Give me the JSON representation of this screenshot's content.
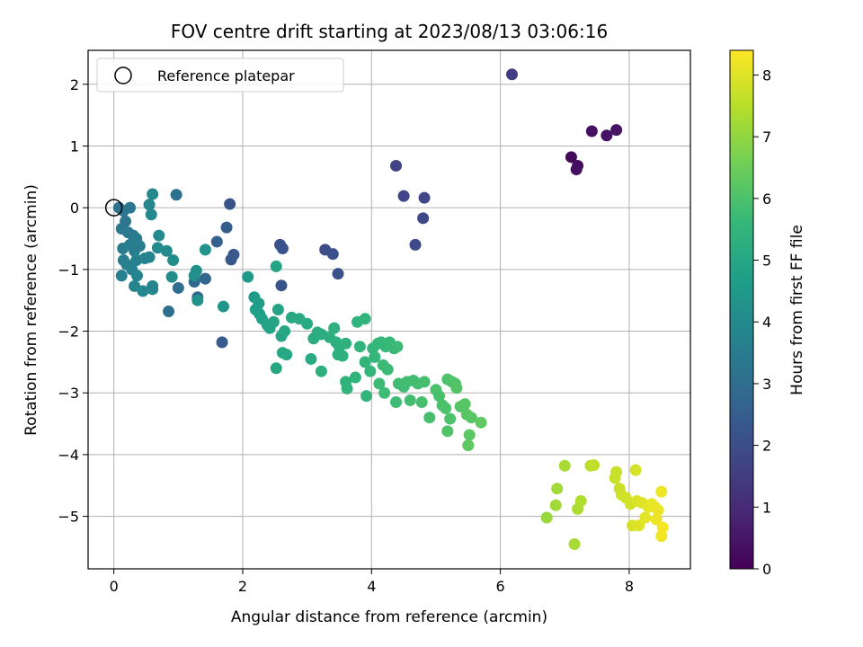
{
  "chart_data": {
    "type": "scatter",
    "title": "FOV centre drift starting at 2023/08/13 03:06:16",
    "xlabel": "Angular distance from reference (arcmin)",
    "ylabel": "Rotation from reference (arcmin)",
    "xlim": [
      -0.4,
      8.95
    ],
    "ylim": [
      -5.85,
      2.55
    ],
    "xticks": [
      0,
      2,
      4,
      6,
      8
    ],
    "xtick_labels": [
      "0",
      "2",
      "4",
      "6",
      "8"
    ],
    "yticks": [
      2,
      1,
      0,
      -1,
      -2,
      -3,
      -4,
      -5
    ],
    "ytick_labels": [
      "2",
      "1",
      "0",
      "−1",
      "−2",
      "−3",
      "−4",
      "−5"
    ],
    "grid": true,
    "legend": {
      "placement": "top-left",
      "entries": [
        "Reference platepar"
      ]
    },
    "reference_point": {
      "x": 0,
      "y": 0
    },
    "colorbar": {
      "label": "Hours from first FF file",
      "colormap": "viridis",
      "range": [
        0,
        8.4
      ],
      "ticks": [
        0,
        1,
        2,
        3,
        4,
        5,
        6,
        7,
        8
      ],
      "tick_labels": [
        "0",
        "1",
        "2",
        "3",
        "4",
        "5",
        "6",
        "7",
        "8"
      ]
    },
    "colormap_stops": [
      "#440154",
      "#482878",
      "#3e4989",
      "#31688e",
      "#26828e",
      "#1f9e89",
      "#35b779",
      "#6ece58",
      "#b5de2b",
      "#fde725"
    ],
    "points": [
      [
        7.1,
        0.82,
        0.2
      ],
      [
        7.2,
        0.68,
        0.25
      ],
      [
        7.18,
        0.62,
        0.3
      ],
      [
        7.42,
        1.24,
        0.35
      ],
      [
        7.65,
        1.17,
        0.4
      ],
      [
        7.8,
        1.26,
        0.45
      ],
      [
        6.18,
        2.16,
        1.5
      ],
      [
        4.38,
        0.68,
        1.7
      ],
      [
        4.5,
        0.19,
        1.75
      ],
      [
        4.82,
        0.16,
        1.8
      ],
      [
        4.8,
        -0.17,
        1.85
      ],
      [
        4.68,
        -0.6,
        1.9
      ],
      [
        3.28,
        -0.68,
        2.0
      ],
      [
        3.4,
        -0.75,
        2.05
      ],
      [
        3.48,
        -1.07,
        2.1
      ],
      [
        2.58,
        -0.6,
        2.1
      ],
      [
        2.62,
        -0.66,
        2.15
      ],
      [
        2.6,
        -1.26,
        2.2
      ],
      [
        1.8,
        0.06,
        2.2
      ],
      [
        1.82,
        -0.84,
        2.3
      ],
      [
        1.86,
        -0.76,
        2.35
      ],
      [
        1.68,
        -2.18,
        2.4
      ],
      [
        1.75,
        -0.32,
        2.5
      ],
      [
        1.6,
        -0.55,
        2.6
      ],
      [
        1.42,
        -1.15,
        2.75
      ],
      [
        1.25,
        -1.2,
        2.8
      ],
      [
        1.3,
        -1.45,
        2.9
      ],
      [
        1.0,
        -1.3,
        3.0
      ],
      [
        0.85,
        -1.68,
        3.05
      ],
      [
        0.97,
        0.21,
        3.1
      ],
      [
        0.08,
        0.0,
        3.2
      ],
      [
        0.15,
        -0.05,
        3.25
      ],
      [
        0.25,
        0.0,
        3.25
      ],
      [
        0.18,
        -0.22,
        3.3
      ],
      [
        0.12,
        -0.34,
        3.35
      ],
      [
        0.22,
        -0.4,
        3.4
      ],
      [
        0.3,
        -0.45,
        3.45
      ],
      [
        0.35,
        -0.5,
        3.5
      ],
      [
        0.14,
        -0.66,
        3.5
      ],
      [
        0.25,
        -0.6,
        3.55
      ],
      [
        0.32,
        -0.7,
        3.6
      ],
      [
        0.4,
        -0.62,
        3.6
      ],
      [
        0.15,
        -0.85,
        3.6
      ],
      [
        0.2,
        -0.92,
        3.65
      ],
      [
        0.12,
        -1.1,
        3.65
      ],
      [
        0.28,
        -1.0,
        3.7
      ],
      [
        0.35,
        -0.85,
        3.7
      ],
      [
        0.48,
        -0.82,
        3.75
      ],
      [
        0.55,
        -0.8,
        3.75
      ],
      [
        0.36,
        -1.1,
        3.8
      ],
      [
        0.32,
        -1.27,
        3.8
      ],
      [
        0.45,
        -1.35,
        3.85
      ],
      [
        0.6,
        -1.32,
        3.85
      ],
      [
        0.6,
        -1.27,
        3.9
      ],
      [
        0.55,
        0.05,
        3.9
      ],
      [
        0.6,
        0.22,
        3.95
      ],
      [
        0.58,
        -0.11,
        3.95
      ],
      [
        0.7,
        -0.45,
        4.0
      ],
      [
        0.68,
        -0.65,
        4.0
      ],
      [
        0.82,
        -0.7,
        4.05
      ],
      [
        0.92,
        -0.85,
        4.1
      ],
      [
        0.9,
        -1.12,
        4.1
      ],
      [
        1.25,
        -1.1,
        4.15
      ],
      [
        1.28,
        -1.02,
        4.2
      ],
      [
        1.3,
        -1.5,
        4.25
      ],
      [
        1.42,
        -0.68,
        4.3
      ],
      [
        1.7,
        -1.6,
        4.4
      ],
      [
        2.08,
        -1.12,
        4.5
      ],
      [
        2.18,
        -1.45,
        4.55
      ],
      [
        2.25,
        -1.55,
        4.6
      ],
      [
        2.2,
        -1.65,
        4.65
      ],
      [
        2.26,
        -1.72,
        4.7
      ],
      [
        2.3,
        -1.8,
        4.75
      ],
      [
        2.38,
        -1.9,
        4.8
      ],
      [
        2.42,
        -1.95,
        4.85
      ],
      [
        2.48,
        -1.85,
        4.9
      ],
      [
        2.55,
        -1.65,
        4.9
      ],
      [
        2.52,
        -0.95,
        4.9
      ],
      [
        2.6,
        -2.08,
        4.95
      ],
      [
        2.65,
        -2.0,
        5.0
      ],
      [
        2.62,
        -2.35,
        5.0
      ],
      [
        2.68,
        -2.38,
        5.0
      ],
      [
        2.52,
        -2.6,
        5.05
      ],
      [
        2.76,
        -1.78,
        5.05
      ],
      [
        2.88,
        -1.8,
        5.1
      ],
      [
        3.0,
        -1.88,
        5.1
      ],
      [
        3.06,
        -2.45,
        5.15
      ],
      [
        3.1,
        -2.12,
        5.15
      ],
      [
        3.16,
        -2.02,
        5.2
      ],
      [
        3.22,
        -2.05,
        5.2
      ],
      [
        3.22,
        -2.65,
        5.25
      ],
      [
        3.35,
        -2.1,
        5.25
      ],
      [
        3.42,
        -1.95,
        5.3
      ],
      [
        3.45,
        -2.18,
        5.3
      ],
      [
        3.5,
        -2.25,
        5.3
      ],
      [
        3.55,
        -2.4,
        5.35
      ],
      [
        3.48,
        -2.38,
        5.35
      ],
      [
        3.6,
        -2.2,
        5.35
      ],
      [
        3.6,
        -2.82,
        5.4
      ],
      [
        3.62,
        -2.93,
        5.4
      ],
      [
        3.75,
        -2.75,
        5.45
      ],
      [
        3.78,
        -1.85,
        5.45
      ],
      [
        3.9,
        -1.8,
        5.5
      ],
      [
        3.82,
        -2.25,
        5.5
      ],
      [
        3.9,
        -2.5,
        5.5
      ],
      [
        3.92,
        -3.05,
        5.5
      ],
      [
        3.98,
        -2.65,
        5.55
      ],
      [
        4.02,
        -2.28,
        5.55
      ],
      [
        4.05,
        -2.42,
        5.55
      ],
      [
        4.1,
        -2.2,
        5.6
      ],
      [
        4.15,
        -2.18,
        5.6
      ],
      [
        4.22,
        -2.25,
        5.6
      ],
      [
        4.28,
        -2.18,
        5.65
      ],
      [
        4.35,
        -2.28,
        5.65
      ],
      [
        4.4,
        -2.25,
        5.7
      ],
      [
        4.18,
        -2.55,
        5.7
      ],
      [
        4.25,
        -2.62,
        5.7
      ],
      [
        4.12,
        -2.85,
        5.7
      ],
      [
        4.2,
        -3.0,
        5.75
      ],
      [
        4.38,
        -3.15,
        5.75
      ],
      [
        4.42,
        -2.85,
        5.8
      ],
      [
        4.5,
        -2.9,
        5.8
      ],
      [
        4.55,
        -2.82,
        5.8
      ],
      [
        4.6,
        -3.12,
        5.85
      ],
      [
        4.65,
        -2.8,
        5.85
      ],
      [
        4.72,
        -2.85,
        5.85
      ],
      [
        4.78,
        -3.15,
        5.9
      ],
      [
        4.82,
        -2.82,
        5.9
      ],
      [
        4.9,
        -3.4,
        5.9
      ],
      [
        5.0,
        -2.95,
        5.95
      ],
      [
        5.05,
        -3.05,
        5.95
      ],
      [
        5.1,
        -3.2,
        5.95
      ],
      [
        5.15,
        -3.25,
        6.0
      ],
      [
        5.18,
        -2.78,
        6.0
      ],
      [
        5.22,
        -3.42,
        6.0
      ],
      [
        5.18,
        -3.62,
        6.05
      ],
      [
        5.25,
        -2.82,
        6.05
      ],
      [
        5.3,
        -2.85,
        6.05
      ],
      [
        5.32,
        -2.92,
        6.1
      ],
      [
        5.38,
        -3.22,
        6.1
      ],
      [
        5.45,
        -3.18,
        6.15
      ],
      [
        5.48,
        -3.35,
        6.15
      ],
      [
        5.55,
        -3.4,
        6.2
      ],
      [
        5.52,
        -3.68,
        6.2
      ],
      [
        5.5,
        -3.85,
        6.25
      ],
      [
        5.7,
        -3.48,
        6.3
      ],
      [
        6.72,
        -5.02,
        7.1
      ],
      [
        6.88,
        -4.55,
        7.2
      ],
      [
        6.86,
        -4.82,
        7.2
      ],
      [
        7.0,
        -4.18,
        7.3
      ],
      [
        7.15,
        -5.45,
        7.3
      ],
      [
        7.2,
        -4.88,
        7.35
      ],
      [
        7.25,
        -4.75,
        7.4
      ],
      [
        7.4,
        -4.18,
        7.5
      ],
      [
        7.45,
        -4.17,
        7.6
      ],
      [
        7.78,
        -4.38,
        7.7
      ],
      [
        7.8,
        -4.28,
        7.7
      ],
      [
        7.85,
        -4.55,
        7.75
      ],
      [
        7.88,
        -4.65,
        7.8
      ],
      [
        7.95,
        -4.7,
        7.8
      ],
      [
        8.02,
        -4.8,
        7.85
      ],
      [
        8.05,
        -5.15,
        7.9
      ],
      [
        8.1,
        -4.25,
        7.9
      ],
      [
        8.12,
        -4.75,
        7.95
      ],
      [
        8.15,
        -5.15,
        8.0
      ],
      [
        8.2,
        -4.78,
        8.0
      ],
      [
        8.25,
        -5.02,
        8.05
      ],
      [
        8.3,
        -4.85,
        8.1
      ],
      [
        8.35,
        -4.8,
        8.1
      ],
      [
        8.4,
        -4.85,
        8.15
      ],
      [
        8.45,
        -4.9,
        8.15
      ],
      [
        8.42,
        -5.05,
        8.2
      ],
      [
        8.5,
        -4.6,
        8.2
      ],
      [
        8.5,
        -5.32,
        8.25
      ],
      [
        8.52,
        -5.18,
        8.3
      ]
    ]
  }
}
